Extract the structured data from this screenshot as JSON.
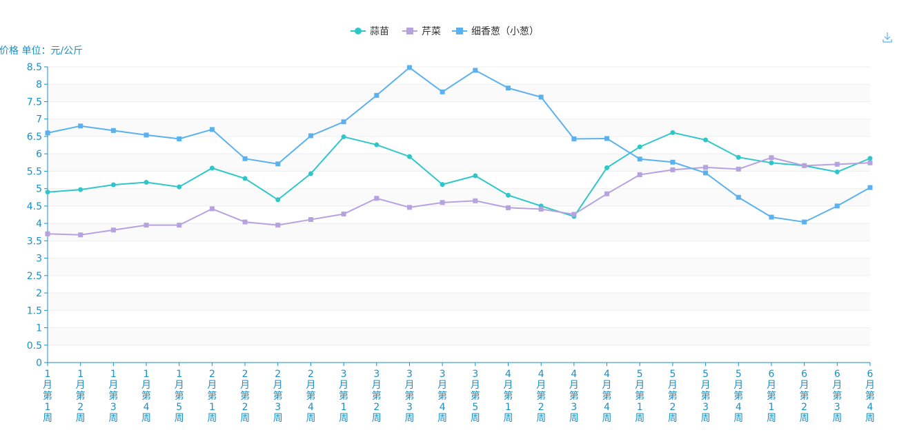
{
  "chart_data": {
    "type": "line",
    "ylabel": "价格 单位：元/公斤",
    "ylim": [
      0,
      8.5
    ],
    "y_ticks": [
      "0",
      "0.5",
      "1",
      "1.5",
      "2",
      "2.5",
      "3",
      "3.5",
      "4",
      "4.5",
      "5",
      "5.5",
      "6",
      "6.5",
      "7",
      "7.5",
      "8",
      "8.5"
    ],
    "legend_position": "top-center",
    "categories": [
      "1月第1周",
      "1月第2周",
      "1月第3周",
      "1月第4周",
      "1月第5周",
      "2月第1周",
      "2月第2周",
      "2月第3周",
      "2月第4周",
      "3月第1周",
      "3月第2周",
      "3月第3周",
      "3月第4周",
      "3月第5周",
      "4月第1周",
      "4月第2周",
      "4月第3周",
      "4月第4周",
      "5月第1周",
      "5月第2周",
      "5月第3周",
      "5月第4周",
      "6月第1周",
      "6月第2周",
      "6月第3周",
      "6月第4周"
    ],
    "series": [
      {
        "name": "蒜苗",
        "color": "#2ec7c9",
        "marker": "circle",
        "values": [
          4.9,
          4.97,
          5.11,
          5.18,
          5.05,
          5.59,
          5.29,
          4.68,
          5.43,
          6.49,
          6.26,
          5.92,
          5.12,
          5.37,
          4.81,
          4.5,
          4.2,
          5.6,
          6.2,
          6.61,
          6.4,
          5.9,
          5.74,
          5.66,
          5.48,
          5.87
        ]
      },
      {
        "name": "芹菜",
        "color": "#b6a2de",
        "marker": "square",
        "values": [
          3.7,
          3.67,
          3.81,
          3.95,
          3.95,
          4.42,
          4.04,
          3.95,
          4.11,
          4.27,
          4.72,
          4.46,
          4.6,
          4.65,
          4.45,
          4.41,
          4.26,
          4.85,
          5.4,
          5.54,
          5.61,
          5.56,
          5.89,
          5.66,
          5.7,
          5.74
        ]
      },
      {
        "name": "细香葱（小葱）",
        "color": "#5ab1ef",
        "marker": "square",
        "values": [
          6.6,
          6.8,
          6.67,
          6.54,
          6.43,
          6.7,
          5.86,
          5.71,
          6.52,
          6.92,
          7.68,
          8.48,
          7.78,
          8.4,
          7.89,
          7.63,
          6.43,
          6.44,
          5.85,
          5.76,
          5.45,
          4.75,
          4.18,
          4.04,
          4.5,
          5.03
        ]
      }
    ],
    "grid": true,
    "toolbox": {
      "icon": "download-icon"
    }
  }
}
